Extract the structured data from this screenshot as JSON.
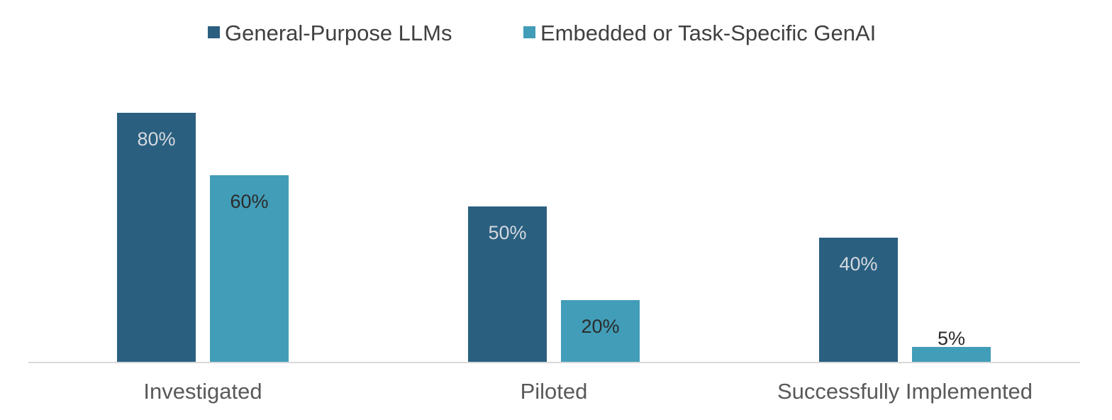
{
  "chart_data": {
    "type": "bar",
    "categories": [
      "Investigated",
      "Piloted",
      "Successfully Implemented"
    ],
    "series": [
      {
        "name": "General-Purpose LLMs",
        "values": [
          80,
          50,
          40
        ],
        "color": "#2a5f80",
        "label_color": "#d4d9de"
      },
      {
        "name": "Embedded or Task-Specific GenAI",
        "values": [
          60,
          20,
          5
        ],
        "color": "#429db8",
        "label_color": "#2b2b2b"
      }
    ],
    "data_labels": [
      [
        "80%",
        "50%",
        "40%"
      ],
      [
        "60%",
        "20%",
        "5%"
      ]
    ],
    "ylim": [
      0,
      100
    ],
    "legend_position": "top-center",
    "grid": false,
    "axis_color": "#d9d9d9"
  }
}
